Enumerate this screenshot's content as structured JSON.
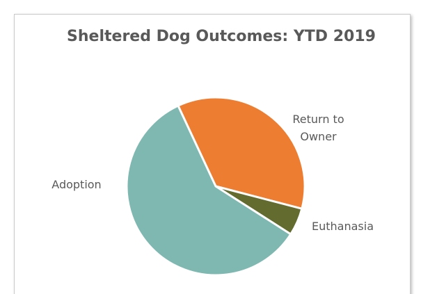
{
  "chart_data": {
    "type": "pie",
    "title": "Sheltered Dog Outcomes: YTD 2019",
    "categories": [
      "Return to Owner",
      "Euthanasia",
      "Adoption"
    ],
    "values": [
      36,
      5,
      59
    ],
    "colors": [
      "#ed7d31",
      "#636b2f",
      "#7fb8b1"
    ]
  }
}
